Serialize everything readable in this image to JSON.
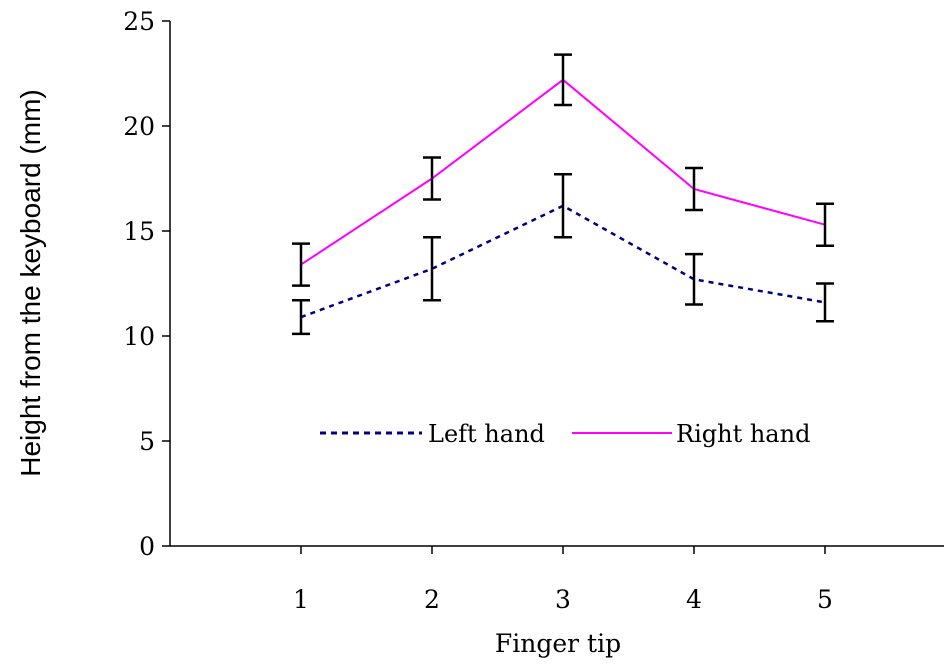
{
  "chart_data": {
    "type": "line",
    "xlabel": "Finger tip",
    "ylabel": "Height from the keyboard (mm)",
    "categories": [
      "1",
      "2",
      "3",
      "4",
      "5"
    ],
    "ylim": [
      0,
      25
    ],
    "yticks": [
      "0",
      "5",
      "10",
      "15",
      "20",
      "25"
    ],
    "grid": false,
    "legend_position": "center",
    "series": [
      {
        "name": "Left hand",
        "color": "#000080",
        "line_style": "dashed",
        "values": [
          10.9,
          13.2,
          16.2,
          12.7,
          11.6
        ],
        "error": [
          0.8,
          1.5,
          1.5,
          1.2,
          0.9
        ]
      },
      {
        "name": "Right hand",
        "color": "#ff00ff",
        "line_style": "solid",
        "values": [
          13.4,
          17.5,
          22.2,
          17.0,
          15.3
        ],
        "error": [
          1.0,
          1.0,
          1.2,
          1.0,
          1.0
        ]
      }
    ]
  }
}
